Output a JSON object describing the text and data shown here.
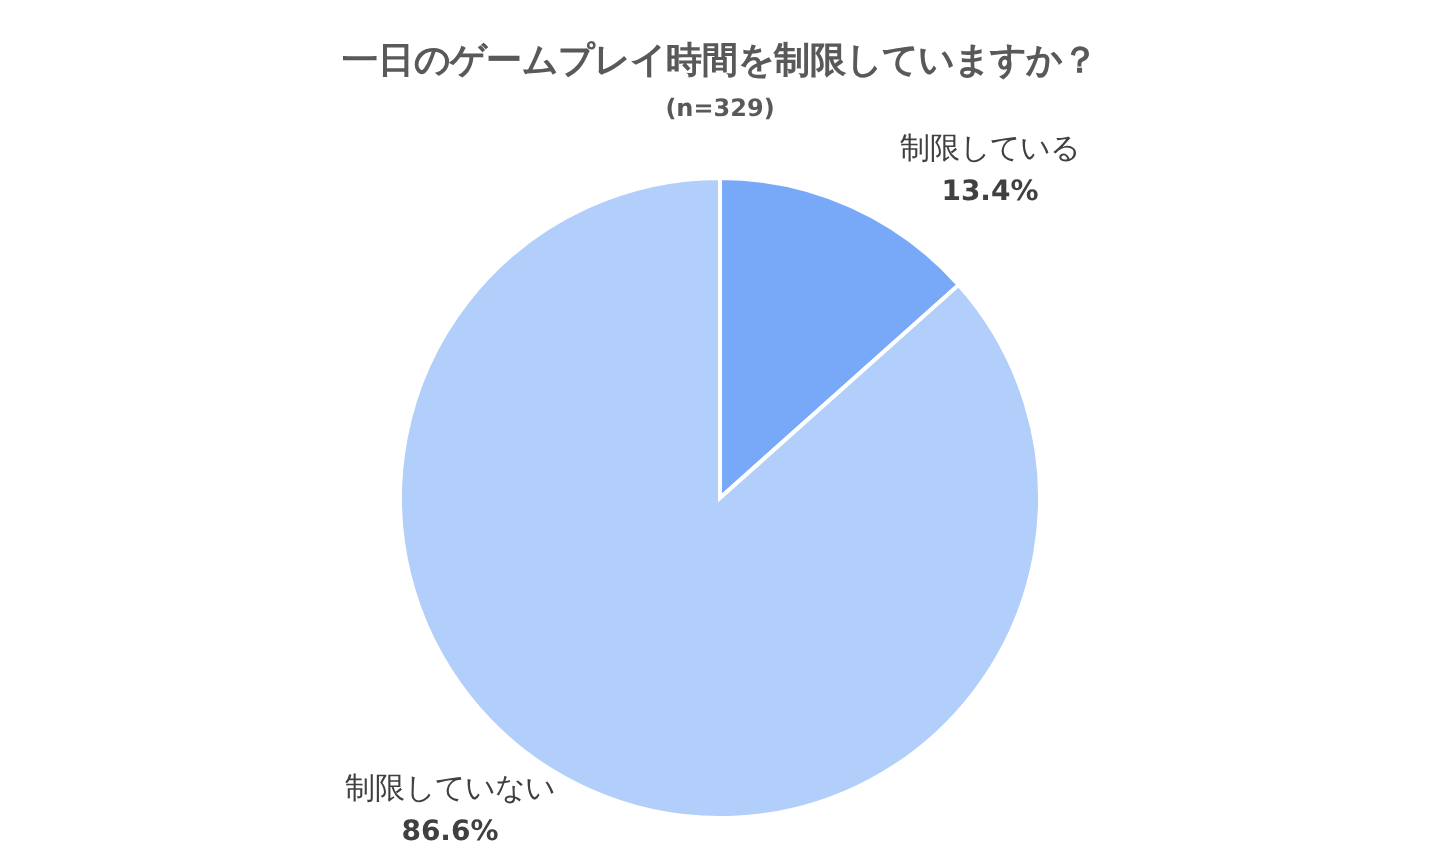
{
  "chart_data": {
    "type": "pie",
    "title": "一日のゲームプレイ時間を制限していますか？",
    "subtitle": "(n=329)",
    "categories": [
      "制限している",
      "制限していない"
    ],
    "values": [
      13.4,
      86.6
    ],
    "colors": [
      "#78a9f9",
      "#b2cefb"
    ],
    "value_labels": [
      "13.4%",
      "86.6%"
    ]
  }
}
